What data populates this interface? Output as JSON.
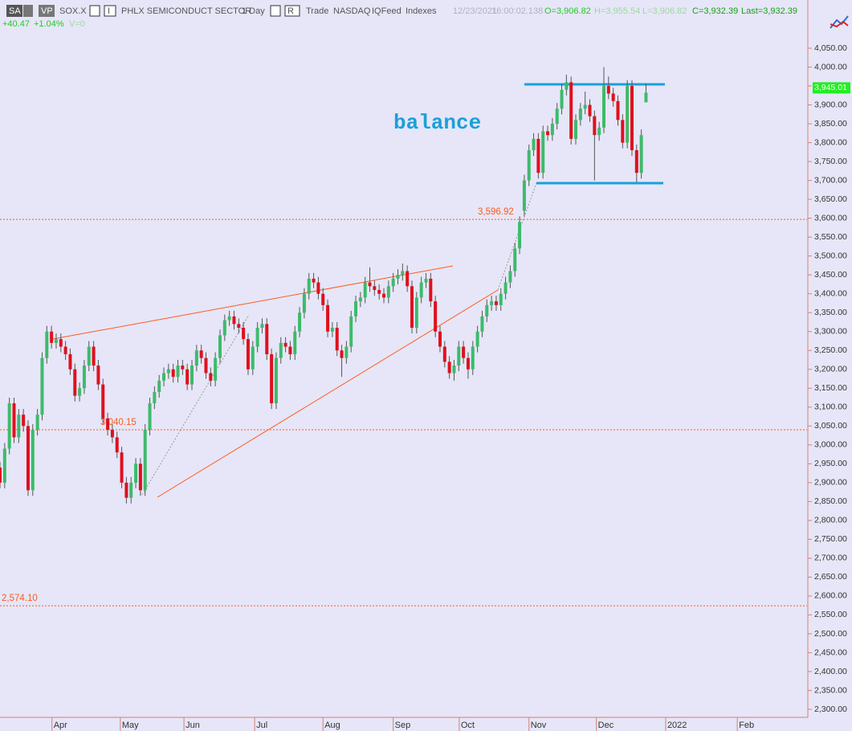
{
  "toolbar": {
    "symbol_badge": "SA",
    "vp": "VP",
    "symbol": "SOX.X",
    "i_button": "I",
    "description": "PHLX SEMICONDUCT SECTOR",
    "interval": "1 Day",
    "r_button": "R",
    "price_type": "Trade",
    "exchange": "NASDAQ",
    "feed": "IQFeed",
    "category": "Indexes",
    "date": "12/23/2021",
    "time": "16:00:02.138",
    "open": "O=3,906.82",
    "high": "H=3,955.54",
    "low": "L=3,906.82",
    "close": "C=3,932.39",
    "last": "Last=3,932.39",
    "change": "+40.47",
    "change_pct": "+1.04%",
    "volume": "V=0"
  },
  "chart_data": {
    "type": "candlestick",
    "up_color": "#3dbb6a",
    "down_color": "#e0101e",
    "xlim": [
      0,
      172.4
    ],
    "ylim": [
      2278.8,
      4177.6
    ],
    "xticks": [
      {
        "value": 11.1,
        "label": "Apr"
      },
      {
        "value": 25.7,
        "label": "May"
      },
      {
        "value": 39.3,
        "label": "Jun"
      },
      {
        "value": 54.4,
        "label": "Jul"
      },
      {
        "value": 69,
        "label": "Aug"
      },
      {
        "value": 84,
        "label": "Sep"
      },
      {
        "value": 98.1,
        "label": "Oct"
      },
      {
        "value": 113,
        "label": "Nov"
      },
      {
        "value": 127.4,
        "label": "Dec"
      },
      {
        "value": 142.2,
        "label": "2022"
      },
      {
        "value": 157.5,
        "label": "Feb"
      }
    ],
    "yticks": [
      {
        "value": 2300,
        "label": "2,300.00"
      },
      {
        "value": 2350,
        "label": "2,350.00"
      },
      {
        "value": 2400,
        "label": "2,400.00"
      },
      {
        "value": 2450,
        "label": "2,450.00"
      },
      {
        "value": 2500,
        "label": "2,500.00"
      },
      {
        "value": 2550,
        "label": "2,550.00"
      },
      {
        "value": 2600,
        "label": "2,600.00"
      },
      {
        "value": 2650,
        "label": "2,650.00"
      },
      {
        "value": 2700,
        "label": "2,700.00"
      },
      {
        "value": 2750,
        "label": "2,750.00"
      },
      {
        "value": 2800,
        "label": "2,800.00"
      },
      {
        "value": 2850,
        "label": "2,850.00"
      },
      {
        "value": 2900,
        "label": "2,900.00"
      },
      {
        "value": 2950,
        "label": "2,950.00"
      },
      {
        "value": 3000,
        "label": "3,000.00"
      },
      {
        "value": 3050,
        "label": "3,050.00"
      },
      {
        "value": 3100,
        "label": "3,100.00"
      },
      {
        "value": 3150,
        "label": "3,150.00"
      },
      {
        "value": 3200,
        "label": "3,200.00"
      },
      {
        "value": 3250,
        "label": "3,250.00"
      },
      {
        "value": 3300,
        "label": "3,300.00"
      },
      {
        "value": 3350,
        "label": "3,350.00"
      },
      {
        "value": 3400,
        "label": "3,400.00"
      },
      {
        "value": 3450,
        "label": "3,450.00"
      },
      {
        "value": 3500,
        "label": "3,500.00"
      },
      {
        "value": 3550,
        "label": "3,550.00"
      },
      {
        "value": 3600,
        "label": "3,600.00"
      },
      {
        "value": 3650,
        "label": "3,650.00"
      },
      {
        "value": 3700,
        "label": "3,700.00"
      },
      {
        "value": 3750,
        "label": "3,750.00"
      },
      {
        "value": 3800,
        "label": "3,800.00"
      },
      {
        "value": 3850,
        "label": "3,850.00"
      },
      {
        "value": 3900,
        "label": "3,900.00"
      },
      {
        "value": 3950,
        "label": "3,950.00"
      },
      {
        "value": 4000,
        "label": "4,000.00"
      },
      {
        "value": 4050,
        "label": "4,050.00"
      }
    ],
    "levels": [
      {
        "value": 3596.92,
        "label": "3,596.92"
      },
      {
        "value": 3040.15,
        "label": "3,040.15"
      },
      {
        "value": 2574.1,
        "label": "2,574.10"
      }
    ],
    "last_price": {
      "value": 3945.01,
      "label": "3,945.01"
    },
    "annotations": [
      "balance"
    ],
    "x": [
      0,
      1,
      2,
      3,
      4,
      5,
      6,
      7,
      8,
      9,
      10,
      11,
      12,
      13,
      14,
      15,
      16,
      17,
      18,
      19,
      20,
      21,
      22,
      23,
      24,
      25,
      26,
      27,
      28,
      29,
      30,
      31,
      32,
      33,
      34,
      35,
      36,
      37,
      38,
      39,
      40,
      41,
      42,
      43,
      44,
      45,
      46,
      47,
      48,
      49,
      50,
      51,
      52,
      53,
      54,
      55,
      56,
      57,
      58,
      59,
      60,
      61,
      62,
      63,
      64,
      65,
      66,
      67,
      68,
      69,
      70,
      71,
      72,
      73,
      74,
      75,
      76,
      77,
      78,
      79,
      80,
      81,
      82,
      83,
      84,
      85,
      86,
      87,
      88,
      89,
      90,
      91,
      92,
      93,
      94,
      95,
      96,
      97,
      98,
      99,
      100,
      101,
      102,
      103,
      104,
      105,
      106,
      107,
      108,
      109,
      110,
      111,
      112,
      113,
      114,
      115,
      116,
      117,
      118,
      119,
      120,
      121,
      122,
      123,
      124,
      125,
      126,
      127,
      128,
      129,
      130,
      131,
      132,
      133,
      134,
      135,
      136,
      137,
      138
    ],
    "ohlc": [
      [
        2940,
        2955,
        2885,
        2900
      ],
      [
        2900,
        3005,
        2885,
        2990
      ],
      [
        2990,
        3125,
        2975,
        3110
      ],
      [
        3110,
        3125,
        3005,
        3020
      ],
      [
        3020,
        3095,
        3005,
        3080
      ],
      [
        3080,
        3095,
        3035,
        3050
      ],
      [
        3050,
        3065,
        2865,
        2880
      ],
      [
        2880,
        3055,
        2865,
        3040
      ],
      [
        3040,
        3095,
        3025,
        3080
      ],
      [
        3080,
        3245,
        3065,
        3230
      ],
      [
        3230,
        3315,
        3215,
        3300
      ],
      [
        3300,
        3315,
        3255,
        3270
      ],
      [
        3270,
        3295,
        3255,
        3280
      ],
      [
        3280,
        3295,
        3245,
        3260
      ],
      [
        3260,
        3275,
        3225,
        3240
      ],
      [
        3240,
        3255,
        3185,
        3200
      ],
      [
        3200,
        3215,
        3115,
        3130
      ],
      [
        3130,
        3165,
        3115,
        3150
      ],
      [
        3150,
        3225,
        3135,
        3210
      ],
      [
        3210,
        3275,
        3195,
        3260
      ],
      [
        3260,
        3275,
        3195,
        3210
      ],
      [
        3210,
        3225,
        3145,
        3160
      ],
      [
        3160,
        3175,
        3055,
        3070
      ],
      [
        3070,
        3085,
        3025,
        3040
      ],
      [
        3040,
        3055,
        3005,
        3020
      ],
      [
        3020,
        3035,
        2965,
        2980
      ],
      [
        2980,
        2995,
        2885,
        2900
      ],
      [
        2900,
        2915,
        2845,
        2860
      ],
      [
        2860,
        2915,
        2845,
        2900
      ],
      [
        2900,
        2965,
        2885,
        2950
      ],
      [
        2950,
        2965,
        2865,
        2880
      ],
      [
        2880,
        3055,
        2865,
        3040
      ],
      [
        3040,
        3125,
        3025,
        3110
      ],
      [
        3110,
        3155,
        3095,
        3140
      ],
      [
        3140,
        3185,
        3125,
        3170
      ],
      [
        3170,
        3205,
        3155,
        3190
      ],
      [
        3190,
        3215,
        3175,
        3200
      ],
      [
        3200,
        3215,
        3165,
        3180
      ],
      [
        3180,
        3225,
        3165,
        3210
      ],
      [
        3210,
        3225,
        3185,
        3200
      ],
      [
        3200,
        3215,
        3145,
        3160
      ],
      [
        3160,
        3225,
        3145,
        3210
      ],
      [
        3210,
        3265,
        3195,
        3250
      ],
      [
        3250,
        3265,
        3215,
        3230
      ],
      [
        3230,
        3245,
        3175,
        3190
      ],
      [
        3190,
        3205,
        3155,
        3170
      ],
      [
        3170,
        3245,
        3155,
        3230
      ],
      [
        3230,
        3305,
        3215,
        3290
      ],
      [
        3290,
        3345,
        3275,
        3330
      ],
      [
        3330,
        3355,
        3315,
        3340
      ],
      [
        3340,
        3355,
        3305,
        3320
      ],
      [
        3320,
        3335,
        3295,
        3310
      ],
      [
        3310,
        3325,
        3265,
        3280
      ],
      [
        3280,
        3295,
        3185,
        3200
      ],
      [
        3200,
        3275,
        3185,
        3260
      ],
      [
        3260,
        3325,
        3245,
        3310
      ],
      [
        3310,
        3335,
        3295,
        3320
      ],
      [
        3320,
        3335,
        3225,
        3240
      ],
      [
        3240,
        3255,
        3095,
        3110
      ],
      [
        3110,
        3245,
        3095,
        3230
      ],
      [
        3230,
        3285,
        3215,
        3270
      ],
      [
        3270,
        3285,
        3245,
        3260
      ],
      [
        3260,
        3275,
        3225,
        3240
      ],
      [
        3240,
        3315,
        3225,
        3300
      ],
      [
        3300,
        3365,
        3285,
        3350
      ],
      [
        3350,
        3415,
        3335,
        3400
      ],
      [
        3400,
        3455,
        3385,
        3440
      ],
      [
        3440,
        3455,
        3415,
        3430
      ],
      [
        3430,
        3445,
        3385,
        3400
      ],
      [
        3400,
        3415,
        3355,
        3370
      ],
      [
        3370,
        3385,
        3285,
        3300
      ],
      [
        3300,
        3325,
        3285,
        3310
      ],
      [
        3310,
        3325,
        3235,
        3250
      ],
      [
        3250,
        3265,
        3180,
        3230
      ],
      [
        3230,
        3275,
        3215,
        3260
      ],
      [
        3260,
        3355,
        3245,
        3340
      ],
      [
        3340,
        3395,
        3325,
        3380
      ],
      [
        3380,
        3405,
        3365,
        3390
      ],
      [
        3390,
        3445,
        3375,
        3430
      ],
      [
        3430,
        3470,
        3405,
        3420
      ],
      [
        3420,
        3435,
        3395,
        3410
      ],
      [
        3410,
        3425,
        3385,
        3400
      ],
      [
        3400,
        3415,
        3375,
        3390
      ],
      [
        3390,
        3435,
        3375,
        3420
      ],
      [
        3420,
        3455,
        3405,
        3440
      ],
      [
        3440,
        3465,
        3425,
        3450
      ],
      [
        3450,
        3480,
        3435,
        3460
      ],
      [
        3460,
        3475,
        3405,
        3420
      ],
      [
        3420,
        3435,
        3295,
        3310
      ],
      [
        3310,
        3405,
        3295,
        3390
      ],
      [
        3390,
        3445,
        3375,
        3430
      ],
      [
        3430,
        3455,
        3415,
        3440
      ],
      [
        3440,
        3455,
        3365,
        3380
      ],
      [
        3380,
        3395,
        3285,
        3300
      ],
      [
        3300,
        3315,
        3245,
        3260
      ],
      [
        3260,
        3275,
        3205,
        3220
      ],
      [
        3220,
        3235,
        3175,
        3190
      ],
      [
        3190,
        3225,
        3170,
        3210
      ],
      [
        3210,
        3275,
        3195,
        3260
      ],
      [
        3260,
        3275,
        3215,
        3230
      ],
      [
        3230,
        3245,
        3175,
        3200
      ],
      [
        3200,
        3275,
        3185,
        3260
      ],
      [
        3260,
        3315,
        3245,
        3300
      ],
      [
        3300,
        3355,
        3285,
        3340
      ],
      [
        3340,
        3385,
        3325,
        3370
      ],
      [
        3370,
        3395,
        3355,
        3380
      ],
      [
        3380,
        3395,
        3355,
        3370
      ],
      [
        3370,
        3415,
        3355,
        3400
      ],
      [
        3400,
        3445,
        3385,
        3430
      ],
      [
        3430,
        3475,
        3415,
        3460
      ],
      [
        3460,
        3535,
        3445,
        3520
      ],
      [
        3520,
        3605,
        3505,
        3590
      ],
      [
        3620,
        3715,
        3605,
        3700
      ],
      [
        3700,
        3795,
        3685,
        3780
      ],
      [
        3780,
        3825,
        3765,
        3810
      ],
      [
        3810,
        3825,
        3705,
        3720
      ],
      [
        3720,
        3845,
        3705,
        3830
      ],
      [
        3830,
        3845,
        3805,
        3820
      ],
      [
        3820,
        3865,
        3805,
        3850
      ],
      [
        3850,
        3905,
        3835,
        3890
      ],
      [
        3890,
        3955,
        3875,
        3940
      ],
      [
        3940,
        3980,
        3925,
        3960
      ],
      [
        3960,
        3975,
        3795,
        3810
      ],
      [
        3810,
        3875,
        3795,
        3860
      ],
      [
        3860,
        3905,
        3845,
        3890
      ],
      [
        3890,
        3935,
        3875,
        3900
      ],
      [
        3900,
        3915,
        3855,
        3870
      ],
      [
        3870,
        3885,
        3700,
        3820
      ],
      [
        3820,
        3855,
        3805,
        3840
      ],
      [
        3840,
        4000,
        3825,
        3950
      ],
      [
        3950,
        3975,
        3915,
        3930
      ],
      [
        3930,
        3945,
        3895,
        3910
      ],
      [
        3910,
        3925,
        3845,
        3860
      ],
      [
        3860,
        3875,
        3785,
        3800
      ],
      [
        3800,
        3965,
        3785,
        3950
      ],
      [
        3950,
        3965,
        3765,
        3780
      ],
      [
        3780,
        3795,
        3695,
        3720
      ],
      [
        3720,
        3835,
        3705,
        3820
      ],
      [
        3906.82,
        3955.54,
        3906.82,
        3932.39
      ]
    ]
  }
}
